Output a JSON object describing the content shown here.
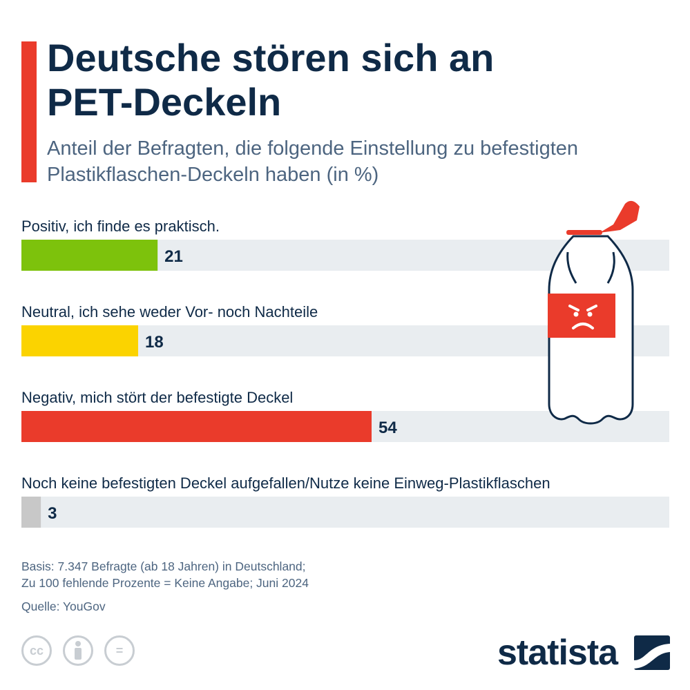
{
  "header": {
    "title": "Deutsche stören sich an PET-Deckeln",
    "subtitle": "Anteil der Befragten, die folgende Einstellung zu befestigten Plastikflaschen-Deckeln haben (in %)"
  },
  "chart_data": {
    "type": "bar",
    "orientation": "horizontal",
    "title": "Deutsche stören sich an PET-Deckeln",
    "subtitle": "Anteil der Befragten, die folgende Einstellung zu befestigten Plastikflaschen-Deckeln haben (in %)",
    "categories": [
      "Positiv, ich finde es praktisch.",
      "Neutral, ich sehe weder Vor- noch Nachteile",
      "Negativ, mich stört der befestigte Deckel",
      "Noch keine befestigten Deckel aufgefallen/Nutze keine Einweg-Plastikflaschen"
    ],
    "values": [
      21,
      18,
      54,
      3
    ],
    "colors": [
      "#7dc20c",
      "#fbd300",
      "#ea3b2b",
      "#c8c8c8"
    ],
    "track_color": "#e9edf0",
    "xlim": [
      0,
      100
    ],
    "grid": false,
    "legend": "none"
  },
  "footer": {
    "basis_line1": "Basis: 7.347 Befragte (ab 18 Jahren) in Deutschland;",
    "basis_line2": "Zu 100 fehlende Prozente = Keine Angabe; Juni 2024",
    "source": "Quelle: YouGov",
    "logo": "statista",
    "cc_icons": [
      "cc-icon",
      "by-icon",
      "nd-icon"
    ],
    "cc_labels": [
      "cc",
      "="
    ]
  },
  "illustration": {
    "icon": "angry-bottle-icon",
    "label_color": "#ea3b2b",
    "outline_color": "#0f2a47"
  }
}
